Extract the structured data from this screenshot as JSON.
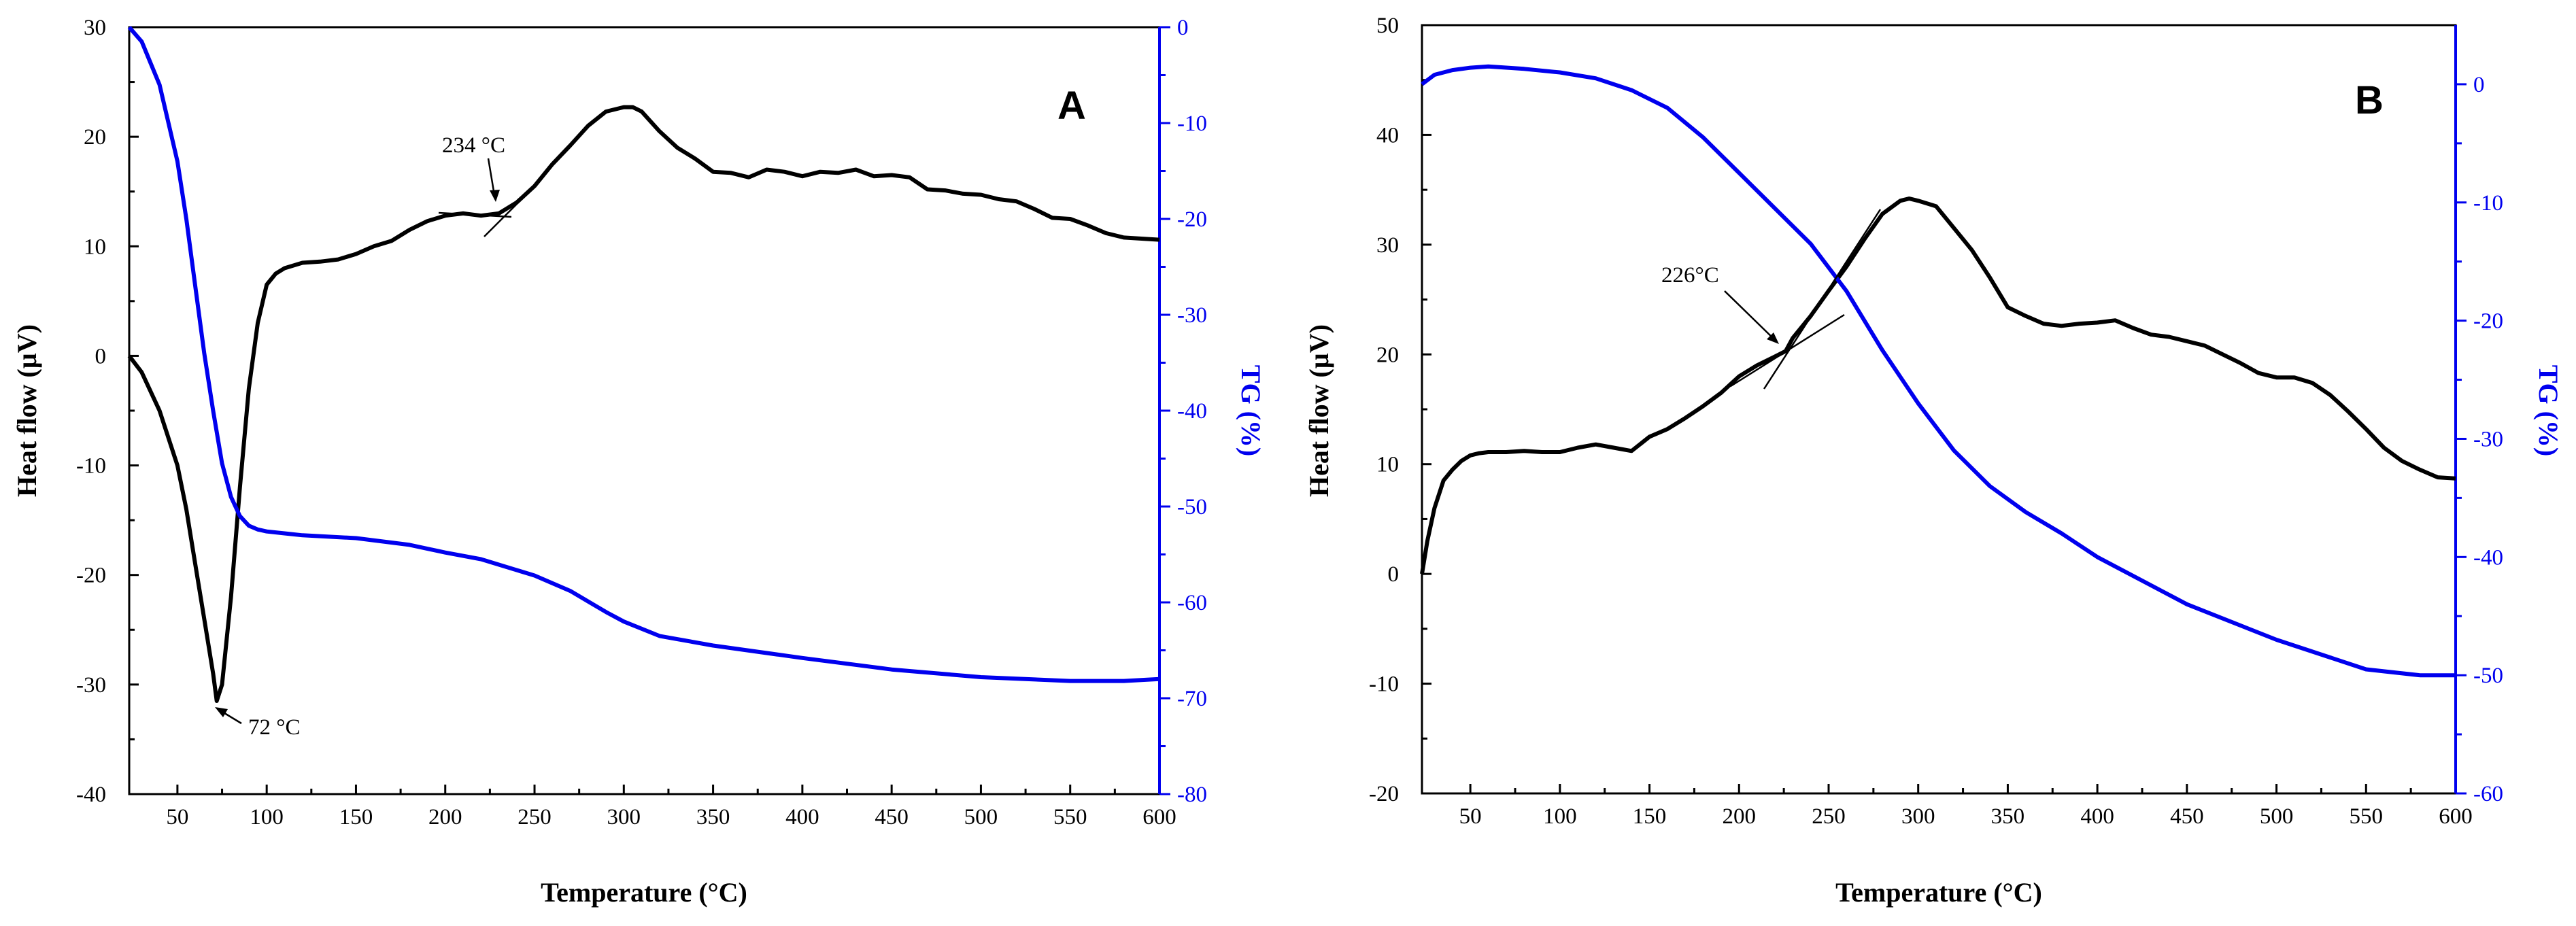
{
  "figure": {
    "colors": {
      "heat_flow": "#000000",
      "tg": "#0000ee",
      "background": "#ffffff"
    }
  },
  "chart_data": [
    {
      "type": "line",
      "panel_label": "A",
      "xlabel": "Temperature (°C)",
      "ylabel": "Heat flow (µV)",
      "y2label": "TG (%)",
      "xlim": [
        23,
        600
      ],
      "ylim": [
        -40,
        30
      ],
      "y2lim": [
        -80,
        0
      ],
      "xticks": [
        50,
        100,
        150,
        200,
        250,
        300,
        350,
        400,
        450,
        500,
        550,
        600
      ],
      "yticks": [
        -40,
        -30,
        -20,
        -10,
        0,
        10,
        20,
        30
      ],
      "y2ticks": [
        -80,
        -70,
        -60,
        -50,
        -40,
        -30,
        -20,
        -10,
        0
      ],
      "series": [
        {
          "name": "Heat flow",
          "axis": "left",
          "color": "#000000",
          "x": [
            23,
            30,
            40,
            50,
            55,
            60,
            65,
            70,
            72,
            75,
            80,
            85,
            90,
            95,
            100,
            105,
            110,
            120,
            130,
            140,
            150,
            160,
            170,
            180,
            190,
            200,
            210,
            220,
            230,
            240,
            250,
            260,
            270,
            280,
            290,
            300,
            305,
            310,
            320,
            330,
            340,
            350,
            360,
            370,
            380,
            390,
            400,
            410,
            420,
            430,
            440,
            450,
            460,
            470,
            480,
            490,
            500,
            510,
            520,
            530,
            540,
            550,
            560,
            570,
            580,
            590,
            600
          ],
          "y": [
            0,
            -1.5,
            -5,
            -10,
            -14,
            -19,
            -24,
            -29,
            -31.5,
            -30,
            -22,
            -12,
            -3,
            3,
            6.5,
            7.5,
            8,
            8.5,
            8.6,
            8.8,
            9.3,
            10,
            10.5,
            11.5,
            12.3,
            12.8,
            13,
            12.8,
            13,
            14,
            15.5,
            17.5,
            19.2,
            21,
            22.3,
            22.7,
            22.7,
            22.3,
            20.5,
            19,
            18,
            16.8,
            16.7,
            16.3,
            17,
            16.8,
            16.4,
            16.8,
            16.7,
            17,
            16.4,
            16.5,
            16.3,
            15.2,
            15.1,
            14.8,
            14.7,
            14.3,
            14.1,
            13.4,
            12.6,
            12.5,
            11.9,
            11.2,
            10.8,
            10.7,
            10.6
          ]
        },
        {
          "name": "TG",
          "axis": "right",
          "color": "#0000ee",
          "x": [
            23,
            30,
            40,
            50,
            55,
            60,
            65,
            70,
            75,
            80,
            85,
            90,
            95,
            100,
            110,
            120,
            150,
            180,
            200,
            220,
            250,
            270,
            290,
            300,
            320,
            350,
            400,
            450,
            500,
            550,
            580,
            600
          ],
          "y": [
            0,
            -1.5,
            -6,
            -14,
            -20,
            -27,
            -34,
            -40,
            -45.5,
            -49,
            -51,
            -52,
            -52.4,
            -52.6,
            -52.8,
            -53,
            -53.3,
            -54,
            -54.8,
            -55.5,
            -57.2,
            -58.8,
            -61,
            -62,
            -63.5,
            -64.5,
            -65.8,
            -67,
            -67.8,
            -68.2,
            -68.2,
            -68
          ]
        }
      ],
      "annotations": [
        {
          "text": "234 °C",
          "x": 234,
          "y": 13
        },
        {
          "text": "72 °C",
          "x": 72,
          "y": -31.5
        }
      ]
    },
    {
      "type": "line",
      "panel_label": "B",
      "xlabel": "Temperature (°C)",
      "ylabel": "Heat flow (µV)",
      "y2label": "TG (%)",
      "xlim": [
        23,
        600
      ],
      "ylim": [
        -20,
        50
      ],
      "y2lim": [
        -60,
        5
      ],
      "xticks": [
        50,
        100,
        150,
        200,
        250,
        300,
        350,
        400,
        450,
        500,
        550,
        600
      ],
      "yticks": [
        -20,
        -10,
        0,
        10,
        20,
        30,
        40,
        50
      ],
      "y2ticks": [
        -60,
        -50,
        -40,
        -30,
        -20,
        -10,
        0
      ],
      "series": [
        {
          "name": "Heat flow",
          "axis": "left",
          "color": "#000000",
          "x": [
            23,
            26,
            30,
            35,
            40,
            45,
            50,
            55,
            60,
            70,
            80,
            90,
            100,
            110,
            120,
            130,
            140,
            150,
            160,
            170,
            180,
            190,
            200,
            210,
            220,
            226,
            230,
            240,
            250,
            260,
            270,
            280,
            290,
            295,
            300,
            310,
            320,
            330,
            340,
            350,
            360,
            370,
            380,
            390,
            400,
            410,
            420,
            430,
            440,
            450,
            460,
            470,
            480,
            490,
            500,
            510,
            520,
            530,
            540,
            550,
            560,
            570,
            580,
            590,
            600
          ],
          "y": [
            0,
            3,
            6,
            8.5,
            9.5,
            10.3,
            10.8,
            11,
            11.1,
            11.1,
            11.2,
            11.1,
            11.1,
            11.5,
            11.8,
            11.5,
            11.2,
            12.5,
            13.2,
            14.2,
            15.3,
            16.5,
            18,
            19,
            19.8,
            20.3,
            21.5,
            23.5,
            25.8,
            28,
            30.5,
            32.8,
            34,
            34.2,
            34,
            33.5,
            31.5,
            29.5,
            27,
            24.3,
            23.5,
            22.8,
            22.6,
            22.8,
            22.9,
            23.1,
            22.4,
            21.8,
            21.6,
            21.2,
            20.8,
            20,
            19.2,
            18.3,
            17.9,
            17.9,
            17.4,
            16.3,
            14.8,
            13.2,
            11.5,
            10.3,
            9.5,
            8.8,
            8.7
          ]
        },
        {
          "name": "TG",
          "axis": "right",
          "color": "#0000ee",
          "x": [
            23,
            30,
            40,
            50,
            60,
            80,
            100,
            120,
            140,
            160,
            180,
            200,
            220,
            240,
            260,
            280,
            300,
            320,
            340,
            360,
            380,
            400,
            450,
            500,
            550,
            580,
            600
          ],
          "y": [
            0,
            0.8,
            1.2,
            1.4,
            1.5,
            1.3,
            1.0,
            0.5,
            -0.5,
            -2,
            -4.5,
            -7.5,
            -10.5,
            -13.5,
            -17.5,
            -22.5,
            -27,
            -31,
            -34,
            -36.2,
            -38,
            -40,
            -44,
            -47,
            -49.5,
            -50,
            -50
          ]
        }
      ],
      "annotations": [
        {
          "text": "226°C",
          "x": 226,
          "y": 20.3
        }
      ]
    }
  ]
}
